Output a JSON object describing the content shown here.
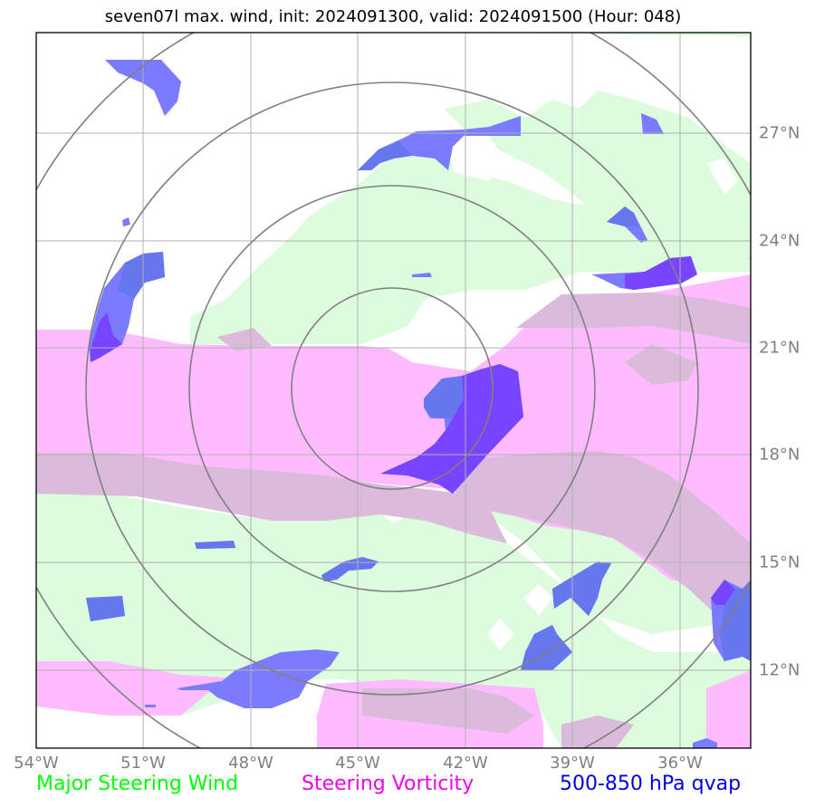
{
  "title": "seven07l max. wind, init: 2024091300, valid: 2024091500 (Hour: 048)",
  "lon_ticks": [
    "54°W",
    "51°W",
    "48°W",
    "45°W",
    "42°W",
    "39°W",
    "36°W"
  ],
  "lat_ticks": [
    "27°N",
    "24°N",
    "21°N",
    "18°N",
    "15°N",
    "12°N"
  ],
  "legend": {
    "wind": "Major Steering Wind",
    "vorticity": "Steering Vorticity",
    "qvap": "500-850 hPa qvap"
  },
  "colors": {
    "wind": "#ddfcdd",
    "vorticity": "#ffbbff",
    "vorticity_overlap": "#dbbbdb",
    "qvap": "#7b7bff",
    "qvap_dark": "#7744ff",
    "qvap_overlap": "#6677ee",
    "grid": "#b0b0b0",
    "rings": "#808080",
    "legend_wind": "#00ff00",
    "legend_vorticity": "#ee00ee",
    "legend_qvap": "#0000dd"
  }
}
